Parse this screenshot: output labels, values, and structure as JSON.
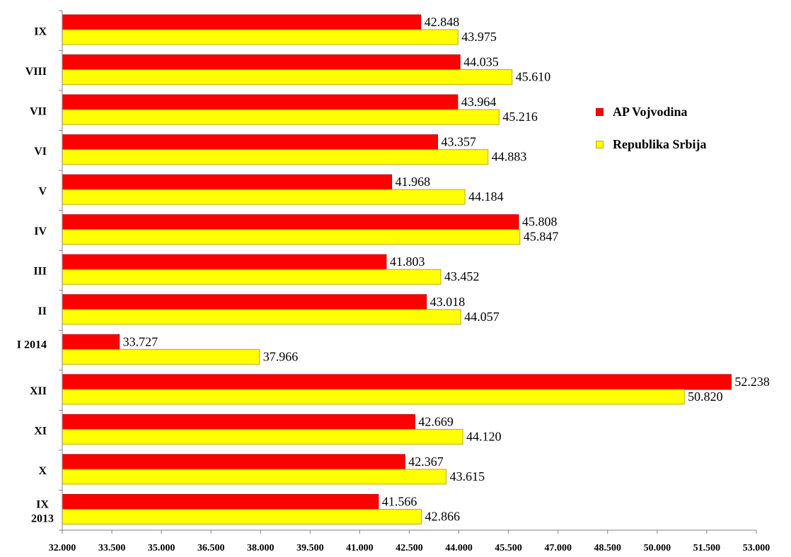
{
  "chart_data": {
    "type": "bar",
    "orientation": "horizontal",
    "categories": [
      "IX 2013",
      "X",
      "XI",
      "XII",
      "I 2014",
      "II",
      "III",
      "IV",
      "V",
      "VI",
      "VII",
      "VIII",
      "IX"
    ],
    "series": [
      {
        "name": "AP Vojvodina",
        "color": "#ff0000",
        "values": [
          41.566,
          42.367,
          42.669,
          52.238,
          33.727,
          43.018,
          41.803,
          45.808,
          41.968,
          43.357,
          43.964,
          44.035,
          42.848
        ],
        "labels": [
          "41.566",
          "42.367",
          "42.669",
          "52.238",
          "33.727",
          "43.018",
          "41.803",
          "45.808",
          "41.968",
          "43.357",
          "43.964",
          "44.035",
          "42.848"
        ]
      },
      {
        "name": "Republika Srbija",
        "color": "#ffff00",
        "values": [
          42.866,
          43.615,
          44.12,
          50.82,
          37.966,
          44.057,
          43.452,
          45.847,
          44.184,
          44.883,
          45.216,
          45.61,
          43.975
        ],
        "labels": [
          "42.866",
          "43.615",
          "44.120",
          "50.820",
          "37.966",
          "44.057",
          "43.452",
          "45.847",
          "44.184",
          "44.883",
          "45.216",
          "45.610",
          "43.975"
        ]
      }
    ],
    "xlim": [
      32,
      53
    ],
    "x_ticks": [
      32,
      33.5,
      35,
      36.5,
      38,
      39.5,
      41,
      42.5,
      44,
      45.5,
      47,
      48.5,
      50,
      51.5,
      53
    ],
    "x_tick_labels": [
      "32.000",
      "33.500",
      "35.000",
      "36.500",
      "38.000",
      "39.500",
      "41.000",
      "42.500",
      "44.000",
      "45.500",
      "47.000",
      "48.500",
      "50.000",
      "51.500",
      "53.000"
    ],
    "title": "",
    "xlabel": "",
    "ylabel": "",
    "grid": false,
    "legend_position": "right"
  }
}
